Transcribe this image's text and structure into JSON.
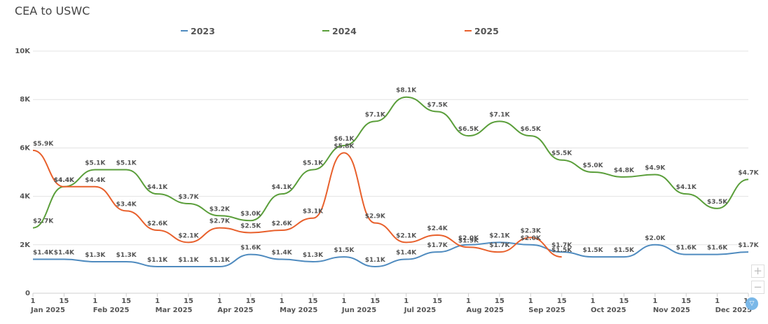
{
  "chart_data": {
    "type": "line",
    "title": "CEA to USWC",
    "xlabel": "",
    "ylabel": "",
    "ylim": [
      0,
      10000
    ],
    "yticks": [
      {
        "value": 0,
        "label": "0"
      },
      {
        "value": 2000,
        "label": "2K"
      },
      {
        "value": 4000,
        "label": "4K"
      },
      {
        "value": 6000,
        "label": "6K"
      },
      {
        "value": 8000,
        "label": "8K"
      },
      {
        "value": 10000,
        "label": "10K"
      }
    ],
    "grid": true,
    "legend_position": "top",
    "x": [
      "Jan 1",
      "Jan 15",
      "Feb 1",
      "Feb 15",
      "Mar 1",
      "Mar 15",
      "Apr 1",
      "Apr 15",
      "May 1",
      "May 15",
      "Jun 1",
      "Jun 15",
      "Jul 1",
      "Jul 15",
      "Aug 1",
      "Aug 15",
      "Sep 1",
      "Sep 15",
      "Oct 1",
      "Oct 15",
      "Nov 1",
      "Nov 15",
      "Dec 1",
      "Dec 15"
    ],
    "xticks": [
      {
        "day": "1",
        "month": "Jan 2025"
      },
      {
        "day": "15",
        "month": ""
      },
      {
        "day": "1",
        "month": "Feb 2025"
      },
      {
        "day": "15",
        "month": ""
      },
      {
        "day": "1",
        "month": "Mar 2025"
      },
      {
        "day": "15",
        "month": ""
      },
      {
        "day": "1",
        "month": "Apr 2025"
      },
      {
        "day": "15",
        "month": ""
      },
      {
        "day": "1",
        "month": "May 2025"
      },
      {
        "day": "15",
        "month": ""
      },
      {
        "day": "1",
        "month": "Jun 2025"
      },
      {
        "day": "15",
        "month": ""
      },
      {
        "day": "1",
        "month": "Jul 2025"
      },
      {
        "day": "15",
        "month": ""
      },
      {
        "day": "1",
        "month": "Aug 2025"
      },
      {
        "day": "15",
        "month": ""
      },
      {
        "day": "1",
        "month": "Sep 2025"
      },
      {
        "day": "15",
        "month": ""
      },
      {
        "day": "1",
        "month": "Oct 2025"
      },
      {
        "day": "15",
        "month": ""
      },
      {
        "day": "1",
        "month": "Nov 2025"
      },
      {
        "day": "15",
        "month": ""
      },
      {
        "day": "1",
        "month": "Dec 2025"
      },
      {
        "day": "15",
        "month": ""
      }
    ],
    "series": [
      {
        "name": "2023",
        "color": "#4f8bbf",
        "values": [
          1400,
          1400,
          1300,
          1300,
          1100,
          1100,
          1100,
          1600,
          1400,
          1300,
          1500,
          1100,
          1400,
          1700,
          2000,
          2100,
          2000,
          1700,
          1500,
          1500,
          2000,
          1600,
          1600,
          1700
        ],
        "labels": [
          "$1.4K",
          "$1.4K",
          "$1.3K",
          "$1.3K",
          "$1.1K",
          "$1.1K",
          "$1.1K",
          "$1.6K",
          "$1.4K",
          "$1.3K",
          "$1.5K",
          "$1.1K",
          "$1.4K",
          "$1.7K",
          "$2.0K",
          "$2.1K",
          "$2.0K",
          "$1.7K",
          "$1.5K",
          "$1.5K",
          "$2.0K",
          "$1.6K",
          "$1.6K",
          "$1.7K"
        ]
      },
      {
        "name": "2024",
        "color": "#5a9e3a",
        "values": [
          2700,
          4400,
          5100,
          5100,
          4100,
          3700,
          3200,
          3000,
          4100,
          5100,
          6100,
          7100,
          8100,
          7500,
          6500,
          7100,
          6500,
          5500,
          5000,
          4800,
          4900,
          4100,
          3500,
          4700
        ],
        "labels": [
          "$2.7K",
          "$4.4K",
          "$5.1K",
          "$5.1K",
          "$4.1K",
          "$3.7K",
          "$3.2K",
          "$3.0K",
          "$4.1K",
          "$5.1K",
          "$6.1K",
          "$7.1K",
          "$8.1K",
          "$7.5K",
          "$6.5K",
          "$7.1K",
          "$6.5K",
          "$5.5K",
          "$5.0K",
          "$4.8K",
          "$4.9K",
          "$4.1K",
          "$3.5K",
          "$4.7K"
        ]
      },
      {
        "name": "2025",
        "color": "#e8602c",
        "values": [
          5900,
          4400,
          4400,
          3400,
          2600,
          2100,
          2700,
          2500,
          2600,
          3100,
          5800,
          2900,
          2100,
          2400,
          1900,
          1700,
          2300,
          1500
        ],
        "labels": [
          "$5.9K",
          "$4.4K",
          "$4.4K",
          "$3.4K",
          "$2.6K",
          "$2.1K",
          "$2.7K",
          "$2.5K",
          "$2.6K",
          "$3.1K",
          "$5.8K",
          "$2.9K",
          "$2.1K",
          "$2.4K",
          "$1.9K",
          "$1.7K",
          "$2.3K",
          "$1.5K"
        ]
      }
    ]
  },
  "controls": {
    "zoom_in": "+",
    "zoom_out": "−",
    "filter_icon": "▽"
  }
}
